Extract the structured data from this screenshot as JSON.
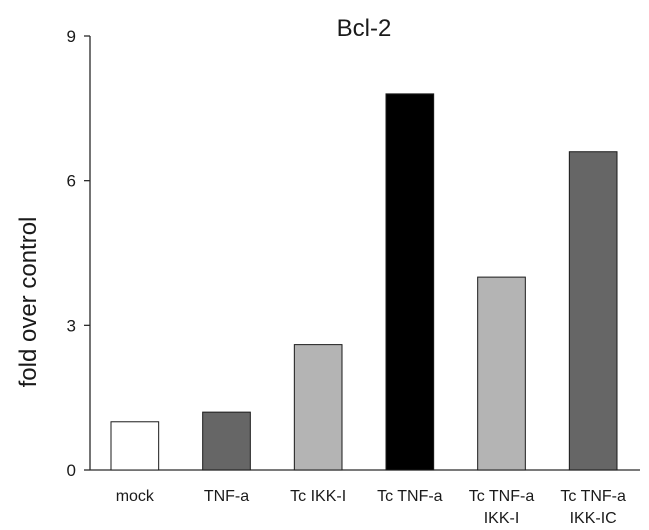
{
  "chart_data": {
    "type": "bar",
    "title": "Bcl-2",
    "xlabel": "",
    "ylabel": "fold over control",
    "ylim": [
      0,
      9
    ],
    "yticks": [
      0,
      3,
      6,
      9
    ],
    "grid": false,
    "categories": [
      [
        "mock"
      ],
      [
        "TNF-a"
      ],
      [
        "Tc IKK-I"
      ],
      [
        "Tc TNF-a"
      ],
      [
        "Tc TNF-a",
        "IKK-I"
      ],
      [
        "Tc TNF-a",
        "IKK-IC"
      ]
    ],
    "values": [
      1.0,
      1.2,
      2.6,
      7.8,
      4.0,
      6.6
    ],
    "colors": [
      "#ffffff",
      "#666666",
      "#b4b4b4",
      "#000000",
      "#b4b4b4",
      "#666666"
    ],
    "outline_color": "#1a1a1a"
  }
}
